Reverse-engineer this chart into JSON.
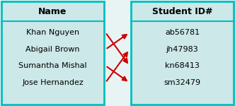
{
  "left_header": "Name",
  "right_header": "Student ID#",
  "left_items": [
    "Khan Nguyen",
    "Abigail Brown",
    "Sumantha Mishal",
    "Jose Hernandez"
  ],
  "right_items": [
    "ab56781",
    "jh47983",
    "kn68413",
    "sm32479"
  ],
  "arrows": [
    [
      0,
      2
    ],
    [
      1,
      0
    ],
    [
      2,
      3
    ],
    [
      3,
      1
    ]
  ],
  "box_bg": "#cce8e8",
  "box_border": "#00bfbf",
  "arrow_color": "#cc0000",
  "header_color": "#000000",
  "text_color": "#000000",
  "fig_bg": "#e8f4f4"
}
